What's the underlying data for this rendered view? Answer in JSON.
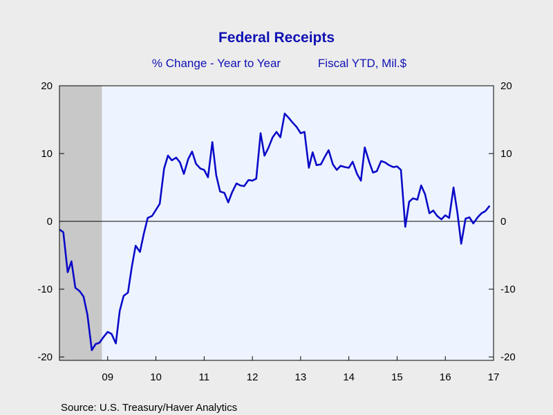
{
  "chart_data": {
    "type": "line",
    "title": "Federal Receipts",
    "subtitle_left": "% Change - Year to Year",
    "subtitle_right": "Fiscal YTD, Mil.$",
    "source": "Source:  U.S. Treasury/Haver Analytics",
    "x_tick_labels": [
      "09",
      "10",
      "11",
      "12",
      "13",
      "14",
      "15",
      "16",
      "17"
    ],
    "y_tick_labels": [
      "20",
      "10",
      "0",
      "-10",
      "-20"
    ],
    "ylim": [
      -20.5,
      20
    ],
    "x_range_years": [
      2008.0,
      2017.0
    ],
    "shaded_recession": {
      "start": 2008.0,
      "end": 2008.88
    },
    "zero_line": true,
    "line_color": "#0a0ac8",
    "recession_color": "#c8c8c8",
    "plot_bg": "#eef4ff",
    "series": [
      {
        "values": [
          [
            2008.0,
            -1.2
          ],
          [
            2008.08,
            -1.6
          ],
          [
            2008.17,
            -7.5
          ],
          [
            2008.25,
            -5.9
          ],
          [
            2008.33,
            -9.8
          ],
          [
            2008.42,
            -10.3
          ],
          [
            2008.5,
            -11.1
          ],
          [
            2008.58,
            -13.8
          ],
          [
            2008.67,
            -19.0
          ],
          [
            2008.75,
            -18.1
          ],
          [
            2008.83,
            -17.9
          ],
          [
            2008.92,
            -17.0
          ],
          [
            2009.0,
            -16.3
          ],
          [
            2009.08,
            -16.6
          ],
          [
            2009.17,
            -18.0
          ],
          [
            2009.25,
            -13.2
          ],
          [
            2009.33,
            -11.0
          ],
          [
            2009.42,
            -10.5
          ],
          [
            2009.5,
            -6.7
          ],
          [
            2009.58,
            -3.6
          ],
          [
            2009.67,
            -4.5
          ],
          [
            2009.75,
            -1.8
          ],
          [
            2009.83,
            0.5
          ],
          [
            2009.92,
            0.8
          ],
          [
            2010.0,
            1.7
          ],
          [
            2010.08,
            2.6
          ],
          [
            2010.17,
            7.8
          ],
          [
            2010.25,
            9.7
          ],
          [
            2010.33,
            9.0
          ],
          [
            2010.42,
            9.4
          ],
          [
            2010.5,
            8.7
          ],
          [
            2010.58,
            7.0
          ],
          [
            2010.67,
            9.2
          ],
          [
            2010.75,
            10.3
          ],
          [
            2010.83,
            8.5
          ],
          [
            2010.92,
            7.8
          ],
          [
            2011.0,
            7.6
          ],
          [
            2011.08,
            6.5
          ],
          [
            2011.17,
            11.7
          ],
          [
            2011.25,
            6.8
          ],
          [
            2011.33,
            4.4
          ],
          [
            2011.42,
            4.2
          ],
          [
            2011.5,
            2.8
          ],
          [
            2011.58,
            4.3
          ],
          [
            2011.67,
            5.6
          ],
          [
            2011.75,
            5.3
          ],
          [
            2011.83,
            5.2
          ],
          [
            2011.92,
            6.1
          ],
          [
            2012.0,
            6.0
          ],
          [
            2012.08,
            6.3
          ],
          [
            2012.17,
            13.0
          ],
          [
            2012.25,
            9.7
          ],
          [
            2012.33,
            10.8
          ],
          [
            2012.42,
            12.4
          ],
          [
            2012.5,
            13.2
          ],
          [
            2012.58,
            12.4
          ],
          [
            2012.67,
            15.9
          ],
          [
            2012.75,
            15.3
          ],
          [
            2012.83,
            14.6
          ],
          [
            2012.92,
            13.9
          ],
          [
            2013.0,
            13.0
          ],
          [
            2013.08,
            13.2
          ],
          [
            2013.17,
            7.9
          ],
          [
            2013.25,
            10.2
          ],
          [
            2013.33,
            8.3
          ],
          [
            2013.42,
            8.4
          ],
          [
            2013.5,
            9.5
          ],
          [
            2013.58,
            10.5
          ],
          [
            2013.67,
            8.4
          ],
          [
            2013.75,
            7.6
          ],
          [
            2013.83,
            8.2
          ],
          [
            2013.92,
            8.0
          ],
          [
            2014.0,
            7.9
          ],
          [
            2014.08,
            8.8
          ],
          [
            2014.17,
            7.0
          ],
          [
            2014.25,
            6.0
          ],
          [
            2014.33,
            10.9
          ],
          [
            2014.42,
            8.8
          ],
          [
            2014.5,
            7.2
          ],
          [
            2014.58,
            7.4
          ],
          [
            2014.67,
            8.9
          ],
          [
            2014.75,
            8.7
          ],
          [
            2014.83,
            8.3
          ],
          [
            2014.92,
            8.0
          ],
          [
            2015.0,
            8.1
          ],
          [
            2015.08,
            7.6
          ],
          [
            2015.17,
            -0.8
          ],
          [
            2015.25,
            2.9
          ],
          [
            2015.33,
            3.4
          ],
          [
            2015.42,
            3.2
          ],
          [
            2015.5,
            5.3
          ],
          [
            2015.58,
            4.0
          ],
          [
            2015.67,
            1.2
          ],
          [
            2015.75,
            1.6
          ],
          [
            2015.83,
            0.8
          ],
          [
            2015.92,
            0.3
          ],
          [
            2016.0,
            0.9
          ],
          [
            2016.08,
            0.5
          ],
          [
            2016.17,
            5.0
          ],
          [
            2016.25,
            1.3
          ],
          [
            2016.33,
            -3.3
          ],
          [
            2016.42,
            0.4
          ],
          [
            2016.5,
            0.6
          ],
          [
            2016.58,
            -0.3
          ],
          [
            2016.67,
            0.6
          ],
          [
            2016.75,
            1.2
          ],
          [
            2016.83,
            1.5
          ],
          [
            2016.92,
            2.3
          ]
        ]
      }
    ]
  }
}
